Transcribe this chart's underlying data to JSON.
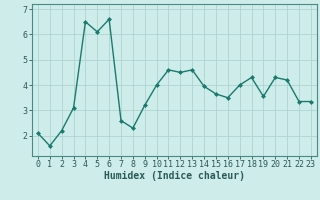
{
  "x": [
    0,
    1,
    2,
    3,
    4,
    5,
    6,
    7,
    8,
    9,
    10,
    11,
    12,
    13,
    14,
    15,
    16,
    17,
    18,
    19,
    20,
    21,
    22,
    23
  ],
  "y": [
    2.1,
    1.6,
    2.2,
    3.1,
    6.5,
    6.1,
    6.6,
    2.6,
    2.3,
    3.2,
    4.0,
    4.6,
    4.5,
    4.6,
    3.95,
    3.65,
    3.5,
    4.0,
    4.3,
    3.55,
    4.3,
    4.2,
    3.35,
    3.35
  ],
  "xlabel": "Humidex (Indice chaleur)",
  "xlim": [
    -0.5,
    23.5
  ],
  "ylim": [
    1.2,
    7.2
  ],
  "yticks": [
    2,
    3,
    4,
    5,
    6,
    7
  ],
  "xticks": [
    0,
    1,
    2,
    3,
    4,
    5,
    6,
    7,
    8,
    9,
    10,
    11,
    12,
    13,
    14,
    15,
    16,
    17,
    18,
    19,
    20,
    21,
    22,
    23
  ],
  "line_color": "#1a7a6e",
  "marker": "D",
  "marker_size": 2.0,
  "line_width": 1.0,
  "bg_color": "#ceecea",
  "grid_color": "#aed4d0",
  "axis_label_color": "#2a5a56",
  "xlabel_fontsize": 7.0,
  "tick_fontsize": 6.0,
  "spine_color": "#4a8a84"
}
